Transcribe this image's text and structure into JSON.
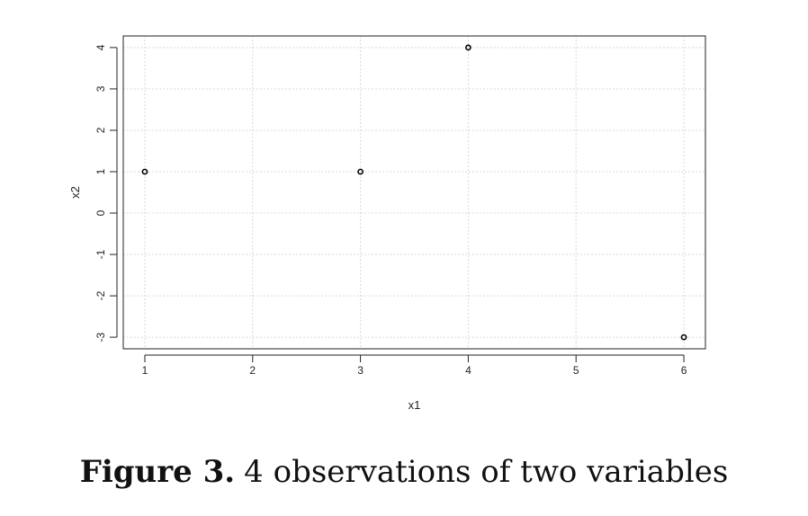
{
  "chart_data": {
    "type": "scatter",
    "x": [
      1,
      3,
      4,
      6
    ],
    "y": [
      1,
      1,
      4,
      -3
    ],
    "xlabel": "x1",
    "ylabel": "x2",
    "xticks": [
      1,
      2,
      3,
      4,
      5,
      6
    ],
    "yticks": [
      -3,
      -2,
      -1,
      0,
      1,
      2,
      3,
      4
    ],
    "xlim": [
      0.8,
      6.2
    ],
    "ylim": [
      -3.28,
      4.28
    ],
    "grid": true,
    "point_color": "#000000",
    "grid_color": "#d9d9d9"
  },
  "caption": {
    "label": "Figure 3.",
    "text": "4 observations of two variables"
  }
}
